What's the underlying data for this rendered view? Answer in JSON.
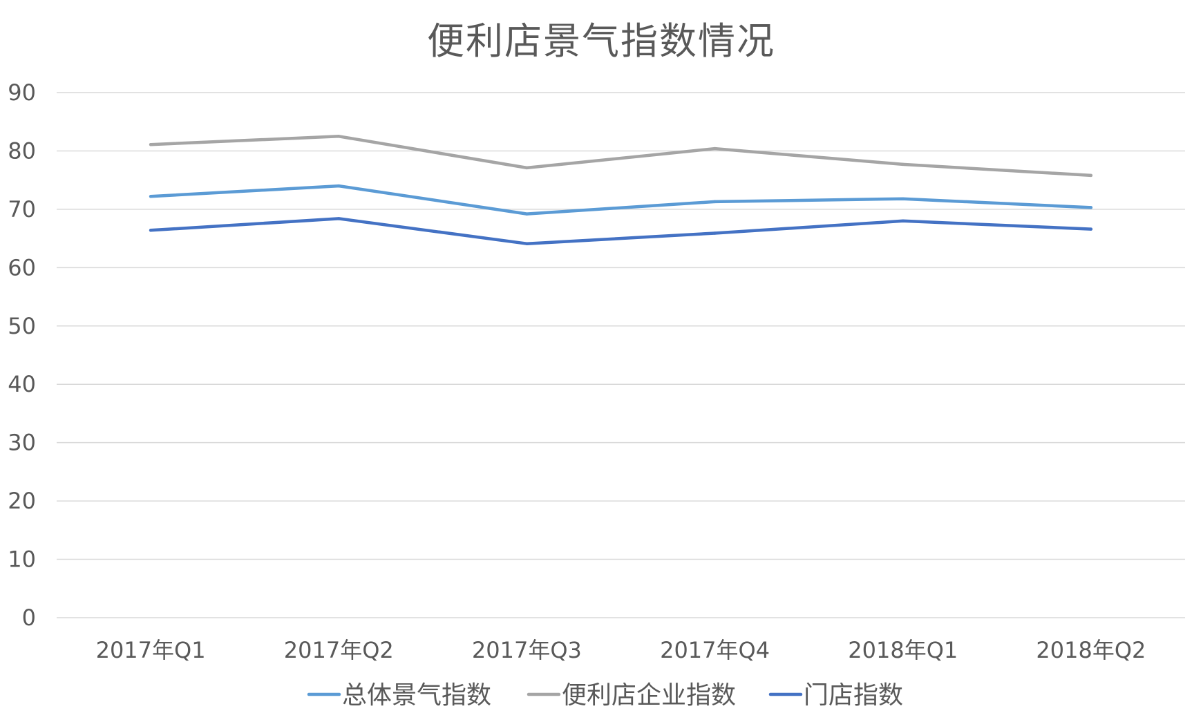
{
  "chart_data": {
    "type": "line",
    "title": "便利店景气指数情况",
    "xlabel": "",
    "ylabel": "",
    "categories": [
      "2017年Q1",
      "2017年Q2",
      "2017年Q3",
      "2017年Q4",
      "2018年Q1",
      "2018年Q2"
    ],
    "ylim": [
      0,
      90
    ],
    "yticks": [
      0,
      10,
      20,
      30,
      40,
      50,
      60,
      70,
      80,
      90
    ],
    "grid": true,
    "legend_position": "bottom",
    "series": [
      {
        "name": "总体景气指数",
        "color": "#5b9bd5",
        "values": [
          72.2,
          74.0,
          69.2,
          71.3,
          71.8,
          70.3
        ]
      },
      {
        "name": "便利店企业指数",
        "color": "#a5a5a5",
        "values": [
          81.1,
          82.5,
          77.1,
          80.4,
          77.7,
          75.8
        ]
      },
      {
        "name": "门店指数",
        "color": "#4472c4",
        "values": [
          66.4,
          68.4,
          64.1,
          65.9,
          68.0,
          66.6
        ]
      }
    ]
  }
}
